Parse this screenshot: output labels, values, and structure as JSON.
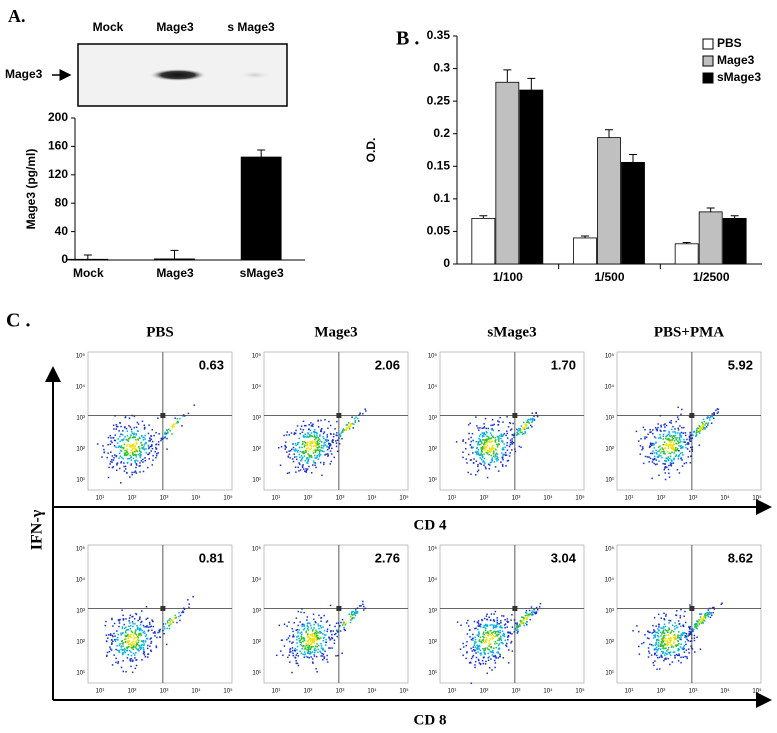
{
  "panel_labels": [
    "A.",
    "B .",
    "C ."
  ],
  "blot": {
    "lanes": [
      "Mock",
      "Mage3",
      "s Mage3"
    ],
    "label": "Mage3"
  },
  "chart_data": [
    {
      "type": "bar",
      "ylabel": "Mage3 (pg/ml)",
      "categories": [
        "Mock",
        "Mage3",
        "sMage3"
      ],
      "values": [
        1,
        1.5,
        145
      ],
      "errors": [
        6,
        12,
        10
      ],
      "color": "#000000",
      "ylim": [
        0,
        200
      ],
      "yticks": [
        0,
        40,
        80,
        120,
        160,
        200
      ]
    },
    {
      "type": "bar",
      "ylabel": "O.D.",
      "categories": [
        "1/100",
        "1/500",
        "1/2500"
      ],
      "series": [
        {
          "name": "PBS",
          "color": "#ffffff",
          "values": [
            0.07,
            0.04,
            0.031
          ],
          "errors": [
            0.004,
            0.003,
            0.002
          ]
        },
        {
          "name": "Mage3",
          "color": "#c0c0c0",
          "values": [
            0.279,
            0.194,
            0.08
          ],
          "errors": [
            0.019,
            0.012,
            0.006
          ]
        },
        {
          "name": "sMage3",
          "color": "#000000",
          "values": [
            0.267,
            0.156,
            0.07
          ],
          "errors": [
            0.018,
            0.012,
            0.004
          ]
        }
      ],
      "ylim": [
        0,
        0.35
      ],
      "yticks": [
        0,
        0.05,
        0.1,
        0.15,
        0.2,
        0.25,
        0.3,
        0.35
      ],
      "legend": "top-right"
    }
  ],
  "flow": {
    "columns": [
      "PBS",
      "Mage3",
      "sMage3",
      "PBS+PMA"
    ],
    "y_label": "IFN-γ",
    "ticks": [
      "10¹",
      "10²",
      "10³",
      "10⁴",
      "10⁵"
    ],
    "rows": [
      {
        "x_label": "CD 4",
        "percents": [
          "0.63",
          "2.06",
          "1.70",
          "5.92"
        ]
      },
      {
        "x_label": "CD 8",
        "percents": [
          "0.81",
          "2.76",
          "3.04",
          "8.62"
        ]
      }
    ]
  }
}
